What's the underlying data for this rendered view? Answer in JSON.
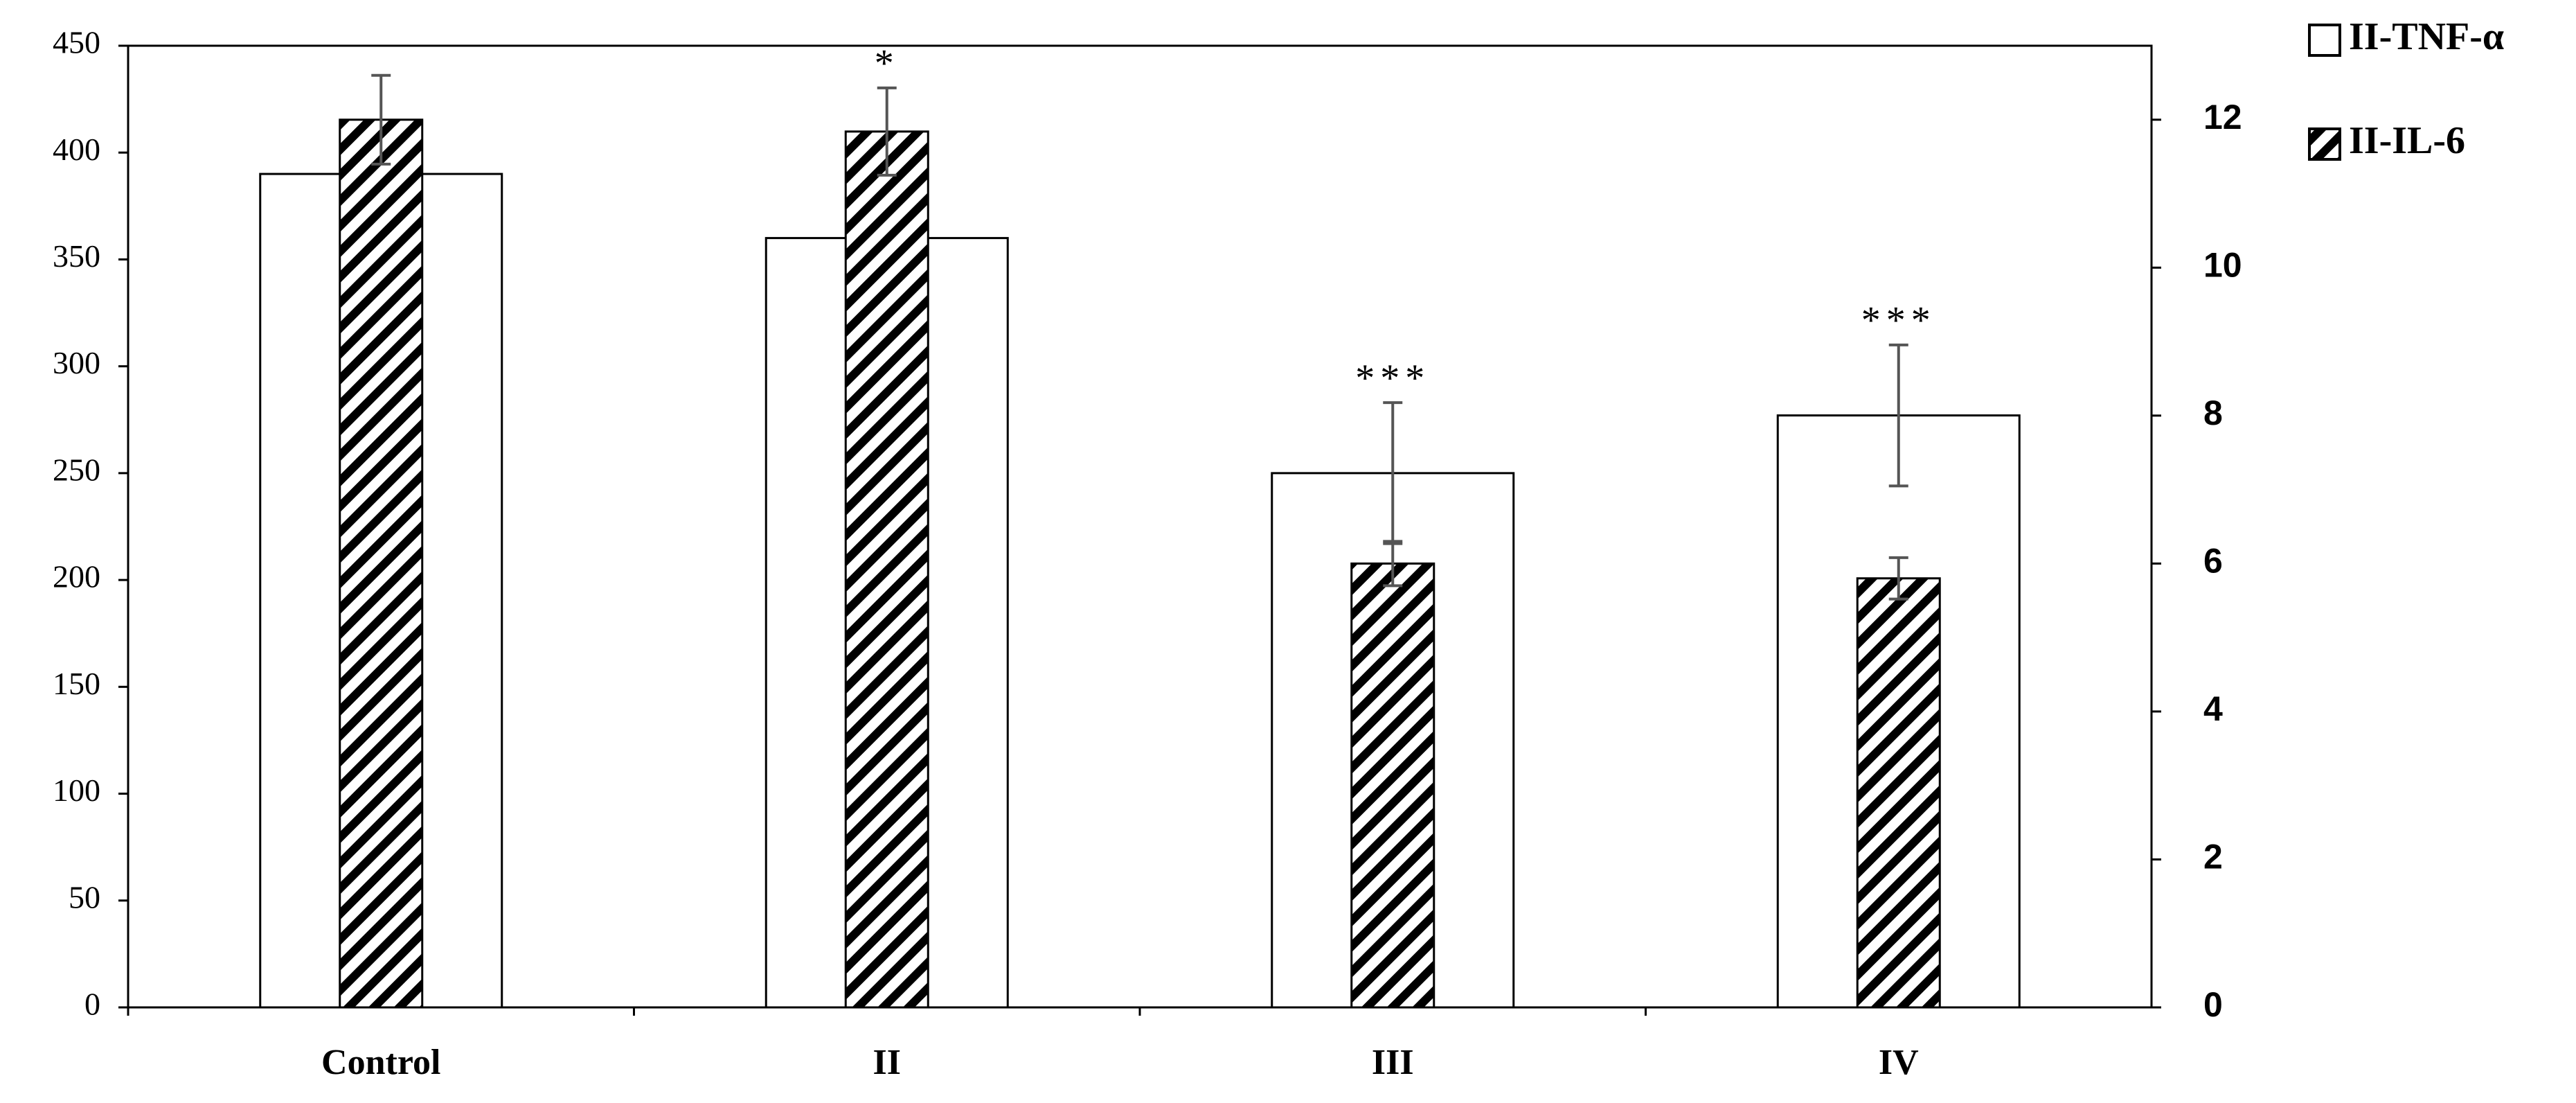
{
  "chart_data": {
    "type": "bar",
    "categories": [
      "Control",
      "II",
      "III",
      "IV"
    ],
    "series": [
      {
        "name": "II-TNF-α",
        "color": "#ffffff",
        "pattern": "none",
        "axis": "y",
        "values": [
          390,
          360,
          250,
          277
        ],
        "errors": [
          null,
          null,
          33,
          33
        ]
      },
      {
        "name": "II-IL-6",
        "color": "#000000",
        "pattern": "hatch",
        "axis": "y2",
        "values": [
          12.0,
          11.84,
          6.0,
          5.8
        ],
        "errors": [
          0.6,
          0.59,
          0.3,
          0.28
        ]
      }
    ],
    "annotations": [
      {
        "category": "II",
        "text": "*"
      },
      {
        "category": "III",
        "text": "***"
      },
      {
        "category": "IV",
        "text": "***"
      }
    ],
    "ylim": [
      0,
      450
    ],
    "yticks": [
      0,
      50,
      100,
      150,
      200,
      250,
      300,
      350,
      400,
      450
    ],
    "y2lim": [
      0,
      13
    ],
    "y2ticks": [
      0,
      2,
      4,
      6,
      8,
      10,
      12
    ],
    "grid": false,
    "legend": "top-right outside"
  }
}
